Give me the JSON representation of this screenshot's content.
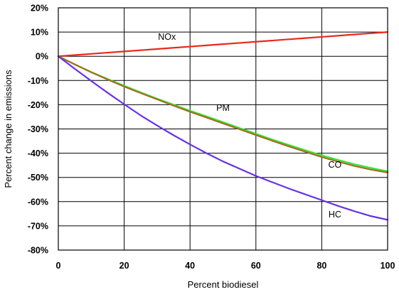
{
  "chart_data": {
    "type": "line",
    "xlabel": "Percent biodiesel",
    "ylabel": "Percent change in emissions",
    "xlim": [
      0,
      100
    ],
    "ylim": [
      -80,
      20
    ],
    "grid": true,
    "x_ticks": [
      0,
      20,
      40,
      60,
      80,
      100
    ],
    "x_tick_labels": [
      "0",
      "20",
      "40",
      "60",
      "80",
      "100"
    ],
    "y_ticks": [
      20,
      10,
      0,
      -10,
      -20,
      -30,
      -40,
      -50,
      -60,
      -70,
      -80
    ],
    "y_tick_labels": [
      "20%",
      "10%",
      "0%",
      "-10%",
      "-20%",
      "-30%",
      "-40%",
      "-50%",
      "-60%",
      "-70%",
      "-80%"
    ],
    "x": [
      0,
      5,
      10,
      15,
      20,
      25,
      30,
      35,
      40,
      45,
      50,
      55,
      60,
      65,
      70,
      75,
      80,
      85,
      90,
      95,
      100
    ],
    "series": [
      {
        "name": "NOx",
        "color": "#e8291c",
        "values": [
          0,
          0.5,
          1,
          1.5,
          2,
          2.5,
          3,
          3.5,
          4,
          4.5,
          5,
          5.5,
          6,
          6.5,
          7,
          7.5,
          8,
          8.5,
          9,
          9.5,
          10
        ]
      },
      {
        "name": "PM",
        "color": "#33e533",
        "values": [
          0,
          -3.3,
          -6.5,
          -9.4,
          -12.2,
          -14.9,
          -17.5,
          -20.0,
          -22.5,
          -24.8,
          -27.2,
          -29.6,
          -32.0,
          -34.4,
          -36.6,
          -38.8,
          -40.9,
          -42.8,
          -44.6,
          -46.1,
          -47.5
        ]
      },
      {
        "name": "CO",
        "color": "#a07020",
        "values": [
          0,
          -3.4,
          -6.6,
          -9.6,
          -12.5,
          -15.2,
          -17.8,
          -20.4,
          -22.9,
          -25.3,
          -27.7,
          -30.1,
          -32.5,
          -34.9,
          -37.2,
          -39.4,
          -41.6,
          -43.5,
          -45.3,
          -46.8,
          -48.0
        ]
      },
      {
        "name": "HC",
        "color": "#6633e6",
        "values": [
          0,
          -5.2,
          -10.2,
          -15.1,
          -19.8,
          -24.4,
          -28.6,
          -32.6,
          -36.4,
          -40.0,
          -43.4,
          -46.4,
          -49.4,
          -52.0,
          -54.6,
          -57.0,
          -59.4,
          -61.8,
          -64.0,
          -66.0,
          -67.5
        ]
      }
    ],
    "annotations": [
      {
        "text": "NOx",
        "x": 33,
        "y": 6.8
      },
      {
        "text": "PM",
        "x": 50,
        "y": -22.5
      },
      {
        "text": "CO",
        "x": 84,
        "y": -46
      },
      {
        "text": "HC",
        "x": 84,
        "y": -66.5
      }
    ]
  }
}
